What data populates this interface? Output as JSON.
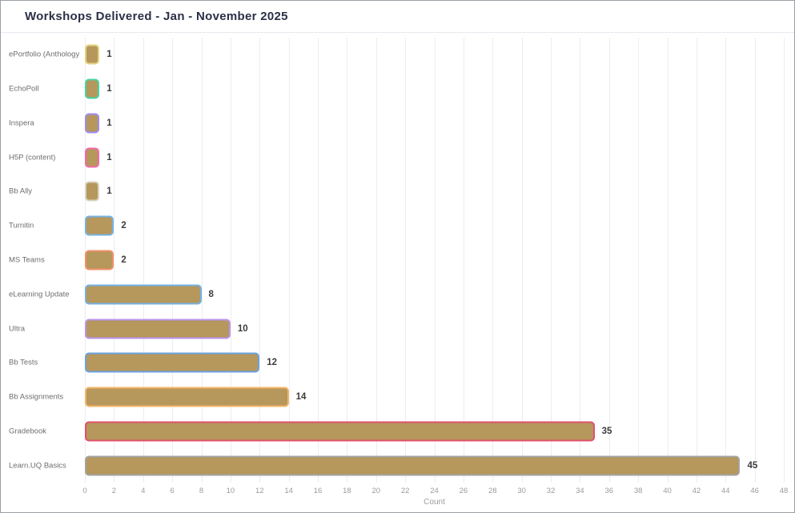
{
  "header": {
    "title": "Workshops Delivered - Jan - November 2025"
  },
  "colors": {
    "bar_fill": "#b6975c",
    "title_text": "#2c3047",
    "category_label": "#6e6e6e",
    "tick_label": "#9b9b9b",
    "gridline": "#ededf2",
    "window_border": "#9aa0a6"
  },
  "chart_data": {
    "type": "bar",
    "orientation": "horizontal",
    "title": "Workshops Delivered - Jan - November 2025",
    "xlabel": "Count",
    "ylabel": "",
    "xlim": [
      0,
      48
    ],
    "tick_step": 2,
    "tick_labels": [
      "0",
      "2",
      "4",
      "6",
      "8",
      "10",
      "12",
      "14",
      "16",
      "18",
      "20",
      "22",
      "24",
      "26",
      "28",
      "30",
      "32",
      "34",
      "36",
      "38",
      "40",
      "42",
      "44",
      "46",
      "48"
    ],
    "grid": true,
    "legend": false,
    "categories": [
      "ePortfolio (Anthology",
      "EchoPoll",
      "Inspera",
      "H5P (content)",
      "Bb Ally",
      "Turnitin",
      "MS Teams",
      "eLearning Update",
      "Ultra",
      "Bb Tests",
      "Bb Assignments",
      "Gradebook",
      "Learn.UQ Basics"
    ],
    "values": [
      1,
      1,
      1,
      1,
      1,
      2,
      2,
      8,
      10,
      12,
      14,
      35,
      45
    ],
    "value_labels": [
      "1",
      "1",
      "1",
      "1",
      "1",
      "2",
      "2",
      "8",
      "10",
      "12",
      "14",
      "35",
      "45"
    ],
    "bar_border_colors": [
      "#e5d37f",
      "#45d6a1",
      "#9d8cf5",
      "#f468a8",
      "#d9d4c2",
      "#74b3e3",
      "#f0916a",
      "#74b3e3",
      "#b995ed",
      "#6aa3e0",
      "#f3b566",
      "#e0506e",
      "#a3a3a3"
    ],
    "bar_fill_color": "#b6975c"
  }
}
